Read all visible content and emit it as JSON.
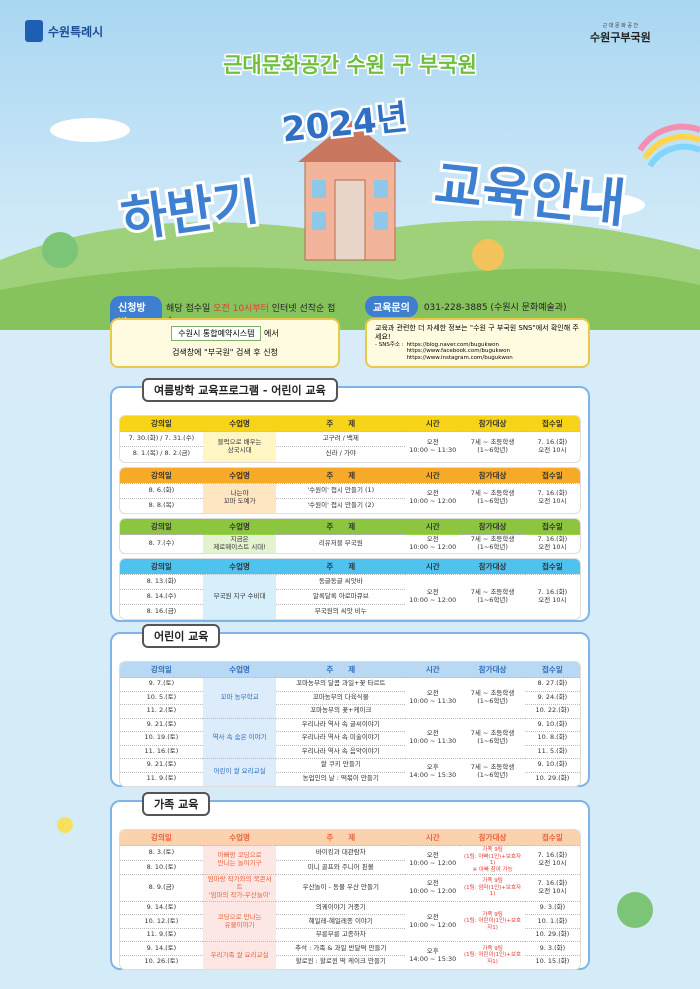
{
  "header": {
    "city": "수원특례시",
    "brand_small": "근 대 문 화 공 간",
    "brand": "수원구부국원"
  },
  "hero": {
    "subtitle": "근대문화공간 수원 구 부국원",
    "year": "2024년",
    "left": "하반기",
    "right": "교육안내"
  },
  "apply": {
    "label": "신청방법",
    "text": [
      "해당 접수일 ",
      "오전 10시부터",
      " 인터넷 선착순 접수"
    ],
    "button": "수원시 통합예약시스템",
    "after": "에서",
    "note": "검색창에 \"부국원\" 검색 후 신청"
  },
  "contact": {
    "label": "교육문의",
    "phone": "031-228-3885 (수원시 문화예술과)",
    "text": "교육과 관련한 더 자세한 정보는 \"수원 구 부국원 SNS\"에서 확인해 주세요!",
    "sns_label": "- SNS주소 :",
    "links": [
      "https://blog.naver.com/bugukwon",
      "https://www.facebook.com/bugukwon",
      "https://www.instagram.com/bugukwon"
    ]
  },
  "headers": [
    "강의일",
    "수업명",
    "주　　제",
    "시간",
    "참가대상",
    "접수일"
  ],
  "sections": [
    {
      "title": "여름방학 교육프로그램 - 어린이 교육",
      "tables": [
        {
          "color": "#f7d417",
          "class_color": "#fff6c4",
          "text_color": "#333333",
          "groups": [
            {
              "dates": [
                "7. 30.(화) / 7. 31.(수)",
                "8. 1.(목) / 8. 2.(금)"
              ],
              "class": "블럭으로 배우는\n삼국시대",
              "topics": [
                "고구려 / 백제",
                "신라 / 가야"
              ],
              "time": "오전\n10:00 ~ 11:30",
              "target": "7세 ~ 초등학생\n(1~6학년)",
              "reg": "7. 16.(화)\n오전 10시"
            }
          ]
        },
        {
          "color": "#f7a928",
          "class_color": "#ffe6c2",
          "text_color": "#333333",
          "groups": [
            {
              "dates": [
                "8. 6.(화)",
                "8. 8.(목)"
              ],
              "class": "나는야\n꼬마 도예가",
              "topics": [
                "'수원이' 접시 만들기 (1)",
                "'수원이' 접시 만들기 (2)"
              ],
              "time": "오전\n10:00 ~ 12:00",
              "target": "7세 ~ 초등학생\n(1~6학년)",
              "reg": "7. 16.(화)\n오전 10시"
            }
          ]
        },
        {
          "color": "#8cc63f",
          "class_color": "#e3f2cf",
          "text_color": "#333333",
          "groups": [
            {
              "dates": [
                "8. 7.(수)"
              ],
              "class": "지금은\n제로웨이스트 시대!",
              "topics": [
                "리유저블 부국원"
              ],
              "time": "오전\n10:00 ~ 12:00",
              "target": "7세 ~ 초등학생\n(1~6학년)",
              "reg": "7. 16.(화)\n오전 10시"
            }
          ]
        },
        {
          "color": "#4fc3f0",
          "class_color": "#d6effb",
          "text_color": "#333333",
          "groups": [
            {
              "dates": [
                "8. 13.(화)",
                "8. 14.(수)",
                "8. 16.(금)"
              ],
              "class": "부국원 지구 수비대",
              "topics": [
                "동글동글 씨앗바",
                "알록달록 아로마큐브",
                "부국원의 씨앗 비누"
              ],
              "time": "오전\n10:00 ~ 12:00",
              "target": "7세 ~ 초등학생\n(1~6학년)",
              "reg": "7. 16.(화)\n오전 10시"
            }
          ]
        }
      ]
    },
    {
      "title": "어린이 교육",
      "tables": [
        {
          "color": "#b9d8f4",
          "class_color": "#dcecfb",
          "text_color": "#2f6fb8",
          "groups": [
            {
              "dates": [
                "9. 7.(토)",
                "10. 5.(토)",
                "11. 2.(토)"
              ],
              "class": "꼬마 농부학교",
              "topics": [
                "꼬마농부의 달콤 과일+꽃 타르트",
                "꼬마농부의 다육식물",
                "꼬마농부의 꽃+케이크"
              ],
              "time": "오전\n10:00 ~ 11:30",
              "target": "7세 ~ 초등학생\n(1~6학년)",
              "reg": [
                "8. 27.(화)",
                "9. 24.(화)",
                "10. 22.(화)"
              ]
            },
            {
              "dates": [
                "9. 21.(토)",
                "10. 19.(토)",
                "11. 16.(토)"
              ],
              "class": "역사 속 숨은 이야기",
              "topics": [
                "우리나라 역사 속 글씨이야기",
                "우리나라 역사 속 미술이야기",
                "우리나라 역사 속 음악이야기"
              ],
              "time": "오전\n10:00 ~ 11:30",
              "target": "7세 ~ 초등학생\n(1~6학년)",
              "reg": [
                "9. 10.(화)",
                "10. 8.(화)",
                "11. 5.(화)"
              ]
            },
            {
              "dates": [
                "9. 21.(토)",
                "11. 9.(토)"
              ],
              "class": "어린이 쌀 요리교실",
              "topics": [
                "쌀 쿠키 만들기",
                "농업인의 날 : 떡볶이 만들기"
              ],
              "time": "오후\n14:00 ~ 15:30",
              "target": "7세 ~ 초등학생\n(1~6학년)",
              "reg": [
                "9. 10.(화)",
                "10. 29.(화)"
              ]
            }
          ]
        }
      ]
    },
    {
      "title": "가족 교육",
      "tables": [
        {
          "color": "#fbd2ae",
          "class_color": "#fde7e4",
          "text_color": "#e8613a",
          "groups": [
            {
              "dates": [
                "8. 3.(토)",
                "8. 10.(토)"
              ],
              "class": "아빠랑 코딩으로\n만나는 놀이기구",
              "topics": [
                "바이킹과 대관람차",
                "미니 골프와 주니어 핀볼"
              ],
              "time": "오전\n10:00 ~ 12:00",
              "target": "가족 9팀\n(1팀: 아빠(1인)+보호자1)\n※ 아빠 참여 가능",
              "reg": "7. 16.(화)\n오전 10시"
            },
            {
              "dates": [
                "8. 9.(금)"
              ],
              "class": "엄마랑 작가와의 북콘서트\n'엄마의 작가-우산놀이'",
              "topics": [
                "우산놀이 - 동물 우산 만들기"
              ],
              "time": "오전\n10:00 ~ 12:00",
              "target": "가족 9팀\n(1팀: 엄마(1인)+보호자1)",
              "reg": "7. 16.(화)\n오전 10시"
            },
            {
              "dates": [
                "9. 14.(토)",
                "10. 12.(토)",
                "11. 9.(토)"
              ],
              "class": "코딩으로 만나는\n유물이야기",
              "topics": [
                "의궤이야기 거중기",
                "혜일레-혜일레종 이야기",
                "부릉부릉 고종하차"
              ],
              "time": "오전\n10:00 ~ 12:00",
              "target": "가족 9팀\n(1팀: 어린이(1인)+보호자1)",
              "reg": [
                "9. 3.(화)",
                "10. 1.(화)",
                "10. 29.(화)"
              ]
            },
            {
              "dates": [
                "9. 14.(토)",
                "10. 26.(토)"
              ],
              "class": "우리가족 쌀 요리교실",
              "topics": [
                "추석 : 가족 & 과일 반달떡 만들기",
                "할로윈 : 할로윈 떡 케이크 만들기"
              ],
              "time": "오후\n14:00 ~ 15:30",
              "target": "가족 9팀\n(1팀: 어린이(1인)+보호자1)",
              "reg": [
                "9. 3.(화)",
                "10. 15.(화)"
              ]
            }
          ]
        }
      ]
    }
  ]
}
